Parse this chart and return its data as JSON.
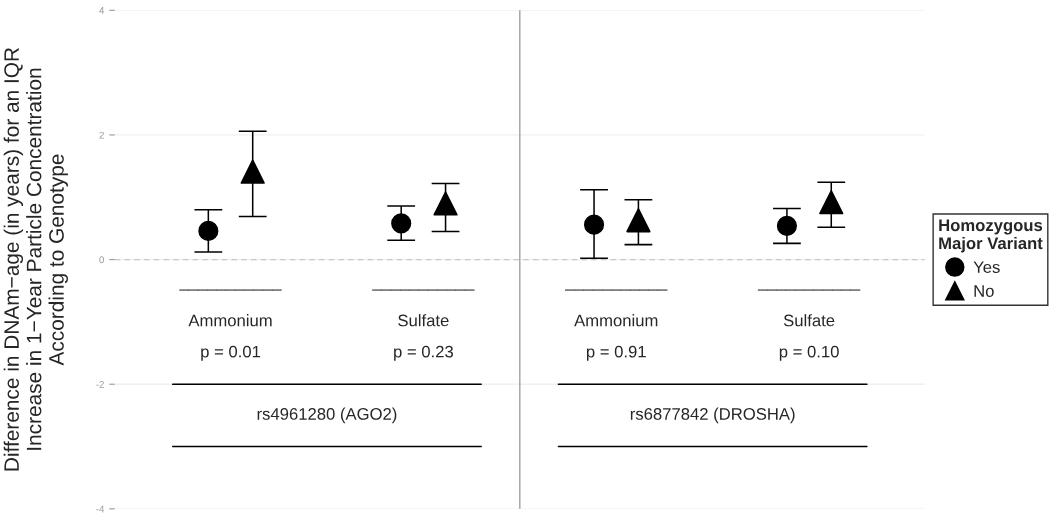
{
  "chart_data": {
    "type": "scatter",
    "ylabel": "Difference in DNAm−age (in years) for an IQR\nIncrease in 1−Year Particle Concentration\nAccording to Genotype",
    "categories": [
      null,
      null,
      null,
      null
    ],
    "series": [
      {
        "name": "Yes",
        "color": "#000000",
        "marker": "circle",
        "values": [
          0.46,
          0.58,
          0.56,
          0.54
        ],
        "errors": [
          [
            0.12,
            0.8
          ],
          [
            0.31,
            0.86
          ],
          [
            0.02,
            1.12
          ],
          [
            0.26,
            0.82
          ]
        ]
      },
      {
        "name": "No",
        "color": "#000000",
        "marker": "triangle",
        "values": [
          1.41,
          0.9,
          0.63,
          0.92
        ],
        "errors": [
          [
            0.69,
            2.06
          ],
          [
            0.45,
            1.22
          ],
          [
            0.24,
            0.96
          ],
          [
            0.52,
            1.24
          ]
        ]
      }
    ],
    "legend_title": "Homozygous\nMajor Variant",
    "legend": "right",
    "ylim": [
      -4,
      4
    ],
    "yticks": [
      -4,
      -2,
      0,
      2,
      4
    ],
    "grid": "y",
    "tick_labels": "y",
    "ref_lines": [
      {
        "axis": "y",
        "value": 0,
        "color": "#c8c8c8",
        "line_style": "dashed"
      }
    ],
    "annotations": [
      "___________",
      "Ammonium",
      "p = 0.01",
      "___________",
      "Sulfate",
      "p = 0.23",
      "___________",
      "Ammonium",
      "p = 0.91",
      "___________",
      "Sulfate",
      "p = 0.10",
      "rs4961280 (AGO2)",
      "rs6877842 (DROSHA)"
    ]
  }
}
